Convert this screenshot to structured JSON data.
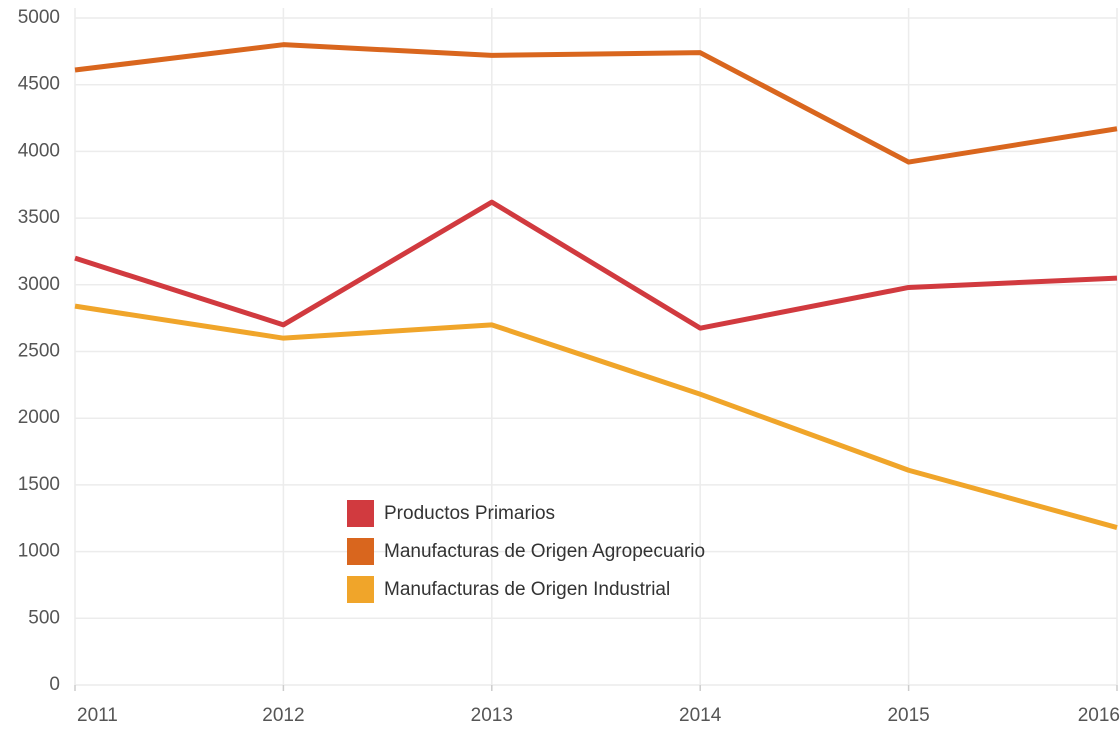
{
  "chart_data": {
    "type": "line",
    "x": [
      2011,
      2012,
      2013,
      2014,
      2015,
      2016
    ],
    "xlim": [
      2011,
      2016
    ],
    "xticks": [
      2011,
      2012,
      2013,
      2014,
      2015,
      2016
    ],
    "ylim": [
      0,
      5000
    ],
    "yticks": [
      0,
      500,
      1000,
      1500,
      2000,
      2500,
      3000,
      3500,
      4000,
      4500,
      5000
    ],
    "grid": true,
    "legend": "center",
    "series": [
      {
        "name": "Productos Primarios",
        "color": "#d13a3f",
        "values": [
          3200,
          2700,
          3620,
          2675,
          2980,
          3050
        ]
      },
      {
        "name": "Manufacturas de Origen Agropecuario",
        "color": "#d9661e",
        "values": [
          4610,
          4800,
          4720,
          4740,
          3920,
          4170
        ]
      },
      {
        "name": "Manufacturas de Origen Industrial",
        "color": "#f0a52a",
        "values": [
          2840,
          2600,
          2700,
          2180,
          1610,
          1180
        ]
      }
    ]
  }
}
